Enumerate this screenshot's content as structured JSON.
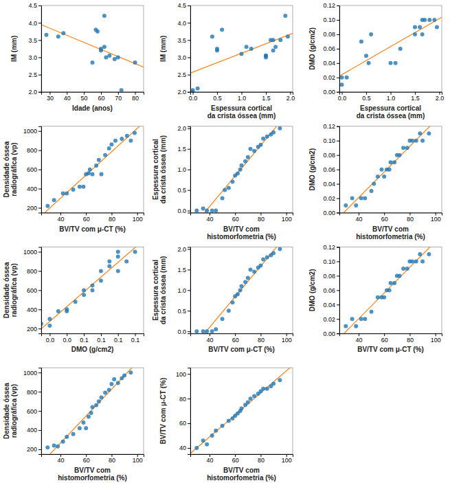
{
  "chart_data": [
    {
      "type": "scatter",
      "xlabel": "Idade (anos)",
      "ylabel": "IM (mm)",
      "xlim": [
        25,
        85
      ],
      "ylim": [
        2.0,
        4.5
      ],
      "xticks": [
        30,
        40,
        50,
        60,
        70,
        80
      ],
      "yticks": [
        {
          "value": 2.0,
          "label": "2.0"
        },
        2.5,
        {
          "value": 3.0,
          "label": "3.0"
        },
        3.5,
        {
          "value": 4.0,
          "label": "4.0"
        },
        4.5
      ],
      "x": [
        28,
        35,
        38,
        55,
        57,
        58,
        60,
        60,
        62,
        62,
        63,
        65,
        68,
        70,
        72,
        80
      ],
      "y": [
        3.65,
        3.6,
        3.7,
        2.85,
        3.8,
        3.75,
        3.25,
        3.2,
        3.3,
        4.2,
        3.0,
        3.05,
        2.95,
        3.0,
        2.05,
        2.85
      ],
      "fit": {
        "slope": -0.0204534,
        "intercept": 4.455189
      }
    },
    {
      "type": "scatter",
      "xlabel": "Espessura cortical\nda crista óssea (mm)",
      "ylabel": "IM (mm)",
      "xlim": [
        -0.05,
        2.05
      ],
      "ylim": [
        2.0,
        4.5
      ],
      "xticks": [
        {
          "value": 0.0,
          "label": "0.0"
        },
        0.5,
        {
          "value": 1.0,
          "label": "1.0"
        },
        1.5,
        {
          "value": 2.0,
          "label": "2.0"
        }
      ],
      "yticks": [
        {
          "value": 2.0,
          "label": "2.0"
        },
        2.5,
        {
          "value": 3.0,
          "label": "3.0"
        },
        3.5,
        {
          "value": 4.0,
          "label": "4.0"
        },
        4.5
      ],
      "x": [
        0.0,
        0.0,
        0.1,
        0.4,
        0.5,
        0.5,
        0.6,
        1.0,
        1.1,
        1.2,
        1.5,
        1.5,
        1.5,
        1.6,
        1.65,
        1.65,
        1.7,
        1.8,
        1.9,
        1.95
      ],
      "y": [
        2.0,
        2.05,
        2.1,
        3.6,
        3.25,
        3.2,
        3.8,
        3.1,
        3.3,
        3.25,
        3.0,
        3.05,
        3.05,
        3.5,
        3.5,
        3.2,
        3.3,
        3.5,
        4.2,
        3.6
      ],
      "fit": {
        "slope": 0.546788,
        "intercept": 2.571932
      }
    },
    {
      "type": "scatter",
      "xlabel": "Espessura cortical\nda crista óssea (mm)",
      "ylabel": "DMO (g/cm2)",
      "xlim": [
        -0.05,
        2.05
      ],
      "ylim": [
        0.0,
        0.12
      ],
      "xticks": [
        {
          "value": 0.0,
          "label": "0.0"
        },
        0.5,
        {
          "value": 1.0,
          "label": "1.0"
        },
        1.5,
        {
          "value": 2.0,
          "label": "2.0"
        }
      ],
      "yticks": [
        {
          "value": 0.0,
          "label": "0.00"
        },
        0.02,
        0.04,
        0.06,
        0.08,
        {
          "value": 0.1,
          "label": "0.10"
        },
        0.12
      ],
      "x": [
        0.0,
        0.0,
        0.1,
        0.4,
        0.5,
        0.55,
        0.6,
        1.0,
        1.1,
        1.2,
        1.5,
        1.5,
        1.6,
        1.65,
        1.65,
        1.7,
        1.8,
        1.9,
        1.95
      ],
      "y": [
        0.02,
        0.01,
        0.02,
        0.07,
        0.05,
        0.04,
        0.08,
        0.04,
        0.04,
        0.06,
        0.08,
        0.09,
        0.09,
        0.1,
        0.08,
        0.1,
        0.1,
        0.1,
        0.09
      ],
      "fit": {
        "slope": 0.0388633,
        "intercept": 0.0239752
      }
    },
    {
      "type": "scatter",
      "xlabel": "BV/TV com μ-CT (%)",
      "ylabel": "Densidade óssea\nradiográfica (vp)",
      "xlim": [
        25,
        105
      ],
      "ylim": [
        150,
        1050
      ],
      "xticks": [
        40,
        60,
        80,
        100
      ],
      "yticks": [
        200,
        400,
        600,
        800,
        1000
      ],
      "x": [
        30,
        35,
        42,
        45,
        50,
        55,
        58,
        60,
        62,
        63,
        65,
        68,
        70,
        72,
        75,
        78,
        80,
        83,
        88,
        92,
        95,
        98
      ],
      "y": [
        220,
        280,
        350,
        350,
        390,
        420,
        420,
        550,
        560,
        600,
        550,
        640,
        700,
        550,
        750,
        820,
        860,
        900,
        920,
        950,
        900,
        980
      ],
      "fit": {
        "slope": 12.140401,
        "intercept": -186.97942
      }
    },
    {
      "type": "scatter",
      "xlabel": "BV/TV com\nhistomorfometria (%)",
      "ylabel": "Espessura cortical\nda crista óssea (mm)",
      "xlim": [
        25,
        105
      ],
      "ylim": [
        -0.05,
        2.05
      ],
      "xticks": [
        40,
        60,
        80,
        100
      ],
      "yticks": [
        {
          "value": 0.0,
          "label": "0.0"
        },
        0.5,
        {
          "value": 1.0,
          "label": "1.0"
        },
        1.5,
        {
          "value": 2.0,
          "label": "2.0"
        }
      ],
      "x": [
        30,
        35,
        38,
        42,
        45,
        50,
        52,
        55,
        58,
        60,
        62,
        64,
        65,
        68,
        70,
        72,
        75,
        78,
        80,
        82,
        85,
        88,
        90,
        95
      ],
      "y": [
        0.0,
        0.05,
        0.0,
        0.0,
        0.0,
        0.3,
        0.5,
        0.55,
        0.7,
        0.85,
        0.9,
        1.0,
        1.1,
        1.2,
        1.3,
        1.5,
        1.45,
        1.55,
        1.6,
        1.75,
        1.8,
        1.85,
        1.9,
        2.0
      ],
      "fit": {
        "slope": 0.0372025,
        "intercept": -1.39186
      }
    },
    {
      "type": "scatter",
      "xlabel": "BV/TV com\nhistomorfometria (%)",
      "ylabel": "DMO (g/cm2)",
      "xlim": [
        25,
        105
      ],
      "ylim": [
        0.0,
        0.12
      ],
      "xticks": [
        40,
        60,
        80,
        100
      ],
      "yticks": [
        {
          "value": 0.0,
          "label": "0.00"
        },
        0.02,
        0.04,
        0.06,
        0.08,
        {
          "value": 0.1,
          "label": "0.10"
        },
        0.12
      ],
      "x": [
        30,
        35,
        38,
        42,
        45,
        50,
        52,
        55,
        58,
        60,
        62,
        64,
        65,
        68,
        70,
        72,
        75,
        78,
        80,
        82,
        85,
        88,
        90,
        95
      ],
      "y": [
        0.01,
        0.02,
        0.01,
        0.02,
        0.02,
        0.03,
        0.04,
        0.05,
        0.06,
        0.05,
        0.06,
        0.06,
        0.07,
        0.07,
        0.08,
        0.08,
        0.09,
        0.09,
        0.1,
        0.1,
        0.1,
        0.11,
        0.1,
        0.11
      ],
      "fit": {
        "slope": 0.00178121,
        "intercept": -0.05047
      }
    },
    {
      "type": "scatter",
      "xlabel": "DMO (g/cm2)",
      "ylabel": "Densidade óssea\nradiográfica (vp)",
      "xlim": [
        0.01,
        0.13
      ],
      "ylim": [
        150,
        1050
      ],
      "xticks": [
        {
          "value": 0.02,
          "label": "0.0"
        },
        {
          "value": 0.04,
          "label": "0.0"
        },
        {
          "value": 0.06,
          "label": "0.1"
        },
        {
          "value": 0.08,
          "label": "0.1"
        },
        {
          "value": 0.1,
          "label": "0.1"
        },
        {
          "value": 0.12,
          "label": "0.1"
        }
      ],
      "yticks": [
        200,
        400,
        600,
        800,
        1000
      ],
      "x": [
        0.01,
        0.02,
        0.02,
        0.03,
        0.04,
        0.04,
        0.05,
        0.06,
        0.06,
        0.07,
        0.07,
        0.08,
        0.08,
        0.09,
        0.09,
        0.1,
        0.1,
        0.1,
        0.11,
        0.12
      ],
      "y": [
        250,
        300,
        230,
        380,
        380,
        400,
        480,
        550,
        600,
        600,
        650,
        700,
        800,
        850,
        900,
        800,
        950,
        1000,
        900,
        1000
      ],
      "fit": {
        "slope": 7688.425,
        "intercept": 120.8755
      }
    },
    {
      "type": "scatter",
      "xlabel": "BV/TV com μ-CT (%)",
      "ylabel": "Espessura cortical\nda crista óssea (mm)",
      "xlim": [
        25,
        105
      ],
      "ylim": [
        -0.05,
        2.05
      ],
      "xticks": [
        40,
        60,
        80,
        100
      ],
      "yticks": [
        {
          "value": 0.0,
          "label": "0.0"
        },
        0.5,
        {
          "value": 1.0,
          "label": "1.0"
        },
        1.5,
        {
          "value": 2.0,
          "label": "2.0"
        }
      ],
      "x": [
        30,
        35,
        38,
        42,
        45,
        50,
        55,
        58,
        60,
        62,
        64,
        65,
        68,
        70,
        72,
        75,
        78,
        80,
        82,
        85,
        88,
        90,
        95
      ],
      "y": [
        0.0,
        0.0,
        0.0,
        0.0,
        0.05,
        0.3,
        0.5,
        0.7,
        0.85,
        0.9,
        1.0,
        1.1,
        1.2,
        1.3,
        1.5,
        1.45,
        1.55,
        1.6,
        1.75,
        1.8,
        1.85,
        1.9,
        2.0
      ],
      "fit": {
        "slope": 0.0372615,
        "intercept": -1.395994
      }
    },
    {
      "type": "scatter",
      "xlabel": "BV/TV com μ-CT (%)",
      "ylabel": "DMO (g/cm2)",
      "xlim": [
        25,
        105
      ],
      "ylim": [
        0.0,
        0.12
      ],
      "xticks": [
        40,
        60,
        80,
        100
      ],
      "yticks": [
        {
          "value": 0.0,
          "label": "0.00"
        },
        0.02,
        0.04,
        0.06,
        0.08,
        {
          "value": 0.1,
          "label": "0.10"
        },
        0.12
      ],
      "x": [
        30,
        35,
        38,
        42,
        45,
        50,
        55,
        58,
        60,
        62,
        64,
        65,
        68,
        70,
        72,
        75,
        78,
        80,
        82,
        85,
        88,
        90,
        95
      ],
      "y": [
        0.01,
        0.02,
        0.01,
        0.02,
        0.02,
        0.03,
        0.05,
        0.05,
        0.05,
        0.06,
        0.06,
        0.07,
        0.07,
        0.08,
        0.08,
        0.09,
        0.09,
        0.1,
        0.1,
        0.1,
        0.11,
        0.1,
        0.11
      ],
      "fit": {
        "slope": 0.00178644,
        "intercept": -0.0511494
      }
    },
    {
      "type": "scatter",
      "xlabel": "BV/TV com\nhistomorfometria (%)",
      "ylabel": "Densidade óssea\nradiográfica (vp)",
      "xlim": [
        25,
        105
      ],
      "ylim": [
        150,
        1050
      ],
      "xticks": [
        40,
        60,
        80,
        100
      ],
      "yticks": [
        200,
        400,
        600,
        800,
        1000
      ],
      "x": [
        30,
        35,
        38,
        42,
        45,
        50,
        55,
        58,
        60,
        62,
        64,
        65,
        68,
        70,
        72,
        75,
        78,
        80,
        82,
        85,
        88,
        90,
        95
      ],
      "y": [
        220,
        240,
        230,
        280,
        330,
        360,
        420,
        480,
        420,
        540,
        580,
        640,
        660,
        700,
        740,
        790,
        820,
        880,
        930,
        890,
        940,
        970,
        1000
      ],
      "fit": {
        "slope": 14.033478,
        "intercept": -295.99052
      }
    },
    {
      "type": "scatter",
      "xlabel": "BV/TV com\nhistomorfometria (%)",
      "ylabel": "BV/TV com μ-CT (%)",
      "xlim": [
        25,
        105
      ],
      "ylim": [
        35,
        105
      ],
      "xticks": [
        40,
        60,
        80,
        100
      ],
      "yticks": [
        40,
        60,
        80,
        100
      ],
      "x": [
        30,
        35,
        38,
        42,
        45,
        50,
        55,
        58,
        60,
        62,
        64,
        65,
        68,
        70,
        72,
        75,
        78,
        80,
        82,
        85,
        88,
        90,
        95
      ],
      "y": [
        40,
        46,
        43,
        50,
        54,
        58,
        62,
        64,
        66,
        68,
        70,
        72,
        75,
        77,
        80,
        82,
        84,
        86,
        88,
        88,
        90,
        92,
        95
      ],
      "fit": {
        "slope": 0.8924975,
        "intercept": 13.167661
      }
    }
  ]
}
